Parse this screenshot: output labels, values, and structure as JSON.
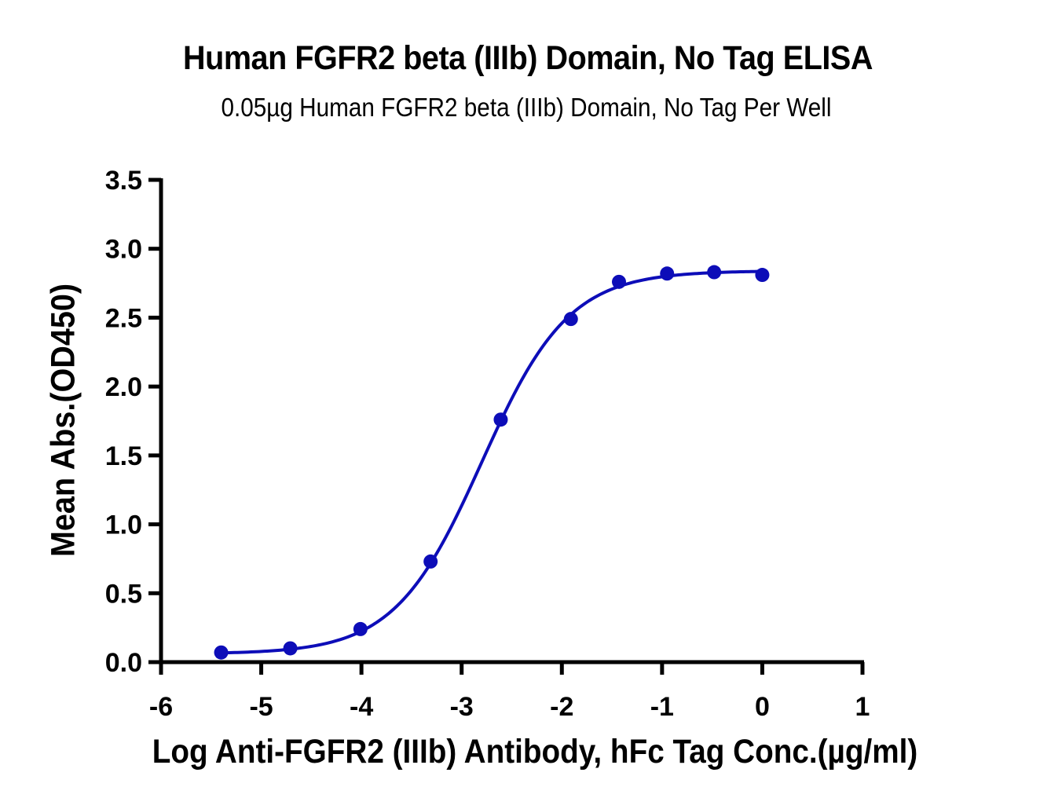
{
  "chart_data": {
    "type": "scatter",
    "title": "Human FGFR2 beta (IIIb) Domain, No Tag ELISA",
    "subtitle": "0.05µg Human FGFR2 beta (IIIb) Domain, No Tag Per Well",
    "xlabel": "Log Anti-FGFR2 (IIIb) Antibody, hFc Tag Conc.(µg/ml)",
    "ylabel": "Mean Abs.(OD450)",
    "xlim": [
      -6,
      1
    ],
    "ylim": [
      0,
      3.5
    ],
    "x_ticks": [
      -6,
      -5,
      -4,
      -3,
      -2,
      -1,
      0,
      1
    ],
    "x_tick_labels": [
      "-6",
      "-5",
      "-4",
      "-3",
      "-2",
      "-1",
      "0",
      "1"
    ],
    "y_ticks": [
      0,
      0.5,
      1.0,
      1.5,
      2.0,
      2.5,
      3.0,
      3.5
    ],
    "y_tick_labels": [
      "0.0",
      "0.5",
      "1.0",
      "1.5",
      "2.0",
      "2.5",
      "3.0",
      "3.5"
    ],
    "grid": false,
    "legend": null,
    "series": [
      {
        "name": "Mean Abs.(OD450)",
        "color": "#0d0db8",
        "marker": "circle",
        "x": [
          -5.4,
          -4.71,
          -4.01,
          -3.31,
          -2.61,
          -1.91,
          -1.43,
          -0.95,
          -0.48,
          0.0
        ],
        "y": [
          0.07,
          0.1,
          0.24,
          0.73,
          1.76,
          2.49,
          2.76,
          2.82,
          2.83,
          2.81
        ],
        "fit": {
          "model": "4PL",
          "bottom": 0.06,
          "top": 2.84,
          "logEC50": -2.8,
          "hill": 1.0
        }
      }
    ]
  }
}
